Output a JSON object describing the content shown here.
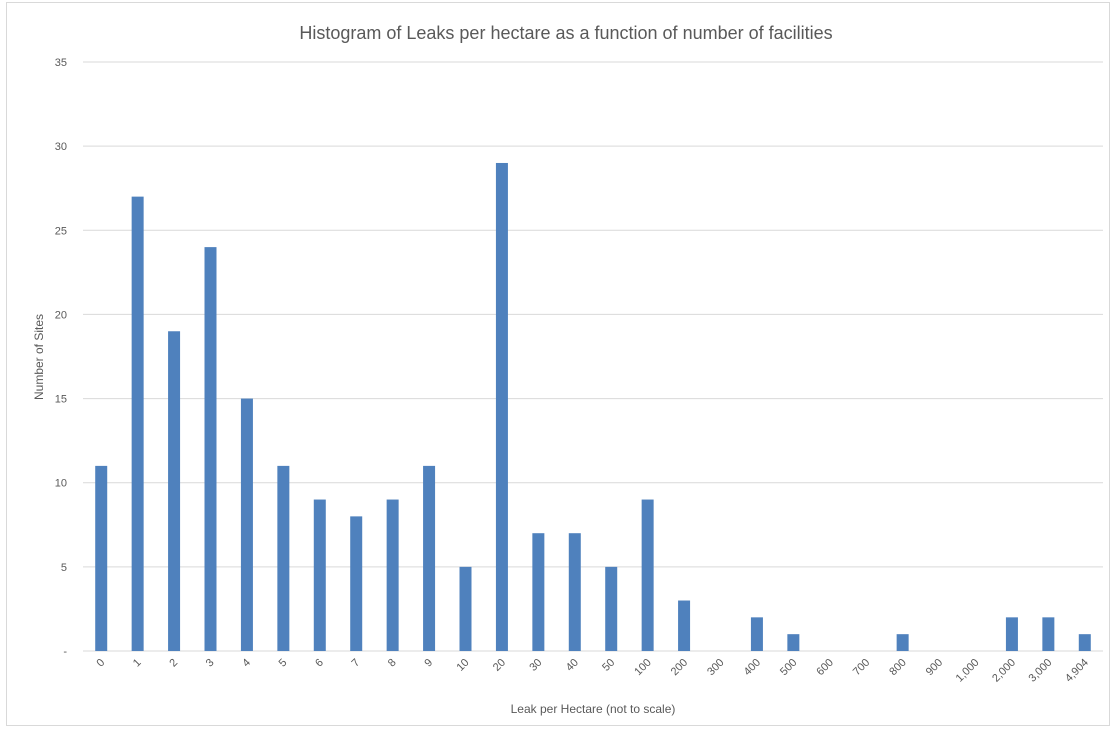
{
  "chart_data": {
    "type": "bar",
    "title": "Histogram of Leaks per hectare as a function of number of facilities",
    "xlabel": "Leak per Hectare (not to scale)",
    "ylabel": "Number of Sites",
    "categories": [
      "0",
      "1",
      "2",
      "3",
      "4",
      "5",
      "6",
      "7",
      "8",
      "9",
      "10",
      "20",
      "30",
      "40",
      "50",
      "100",
      "200",
      "300",
      "400",
      "500",
      "600",
      "700",
      "800",
      "900",
      "1,000",
      "2,000",
      "3,000",
      "4,904"
    ],
    "values": [
      11,
      27,
      19,
      24,
      15,
      11,
      9,
      8,
      9,
      11,
      5,
      29,
      7,
      7,
      5,
      9,
      3,
      0,
      2,
      1,
      0,
      0,
      1,
      0,
      0,
      2,
      2,
      1
    ],
    "ylim": [
      0,
      35
    ],
    "yticks": [
      "-",
      "5",
      "10",
      "15",
      "20",
      "25",
      "30",
      "35"
    ],
    "grid": true,
    "legend": "none",
    "bar_color": "#4f81bd"
  }
}
